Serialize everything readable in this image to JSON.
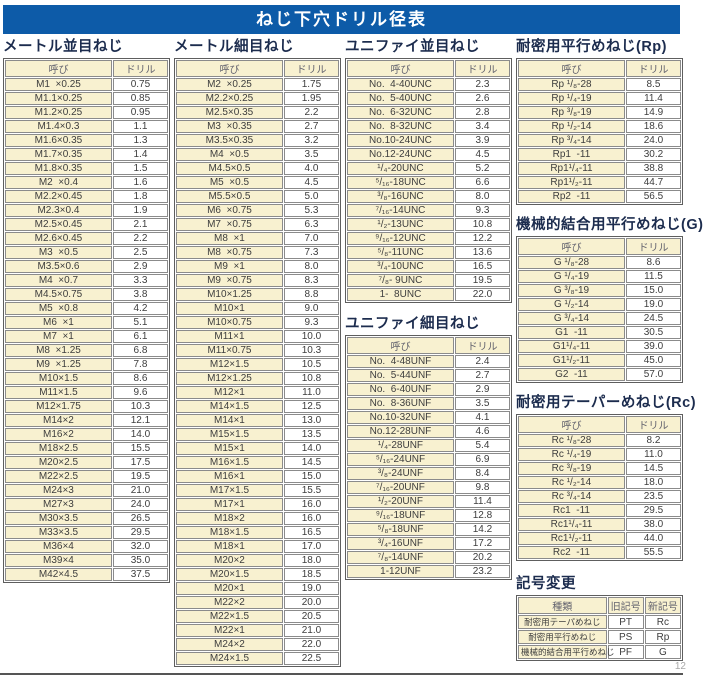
{
  "title": "ねじ下穴ドリル径表",
  "col_headers": {
    "name": "呼び",
    "drill": "ドリル"
  },
  "page_number": "12",
  "colors": {
    "title_bar_bg": "#0d5ba8",
    "title_text": "#ffffff",
    "section_title_text": "#1c2c4e",
    "cell_cream_bg": "#f8f1d0",
    "cell_white_bg": "#ffffff",
    "grid_line": "#8b8b8b",
    "outer_border": "#5e5e5e"
  },
  "tables": [
    {
      "title": "メートル並目ねじ",
      "rows": [
        [
          "M1  ×0.25",
          "0.75"
        ],
        [
          "M1.1×0.25",
          "0.85"
        ],
        [
          "M1.2×0.25",
          "0.95"
        ],
        [
          "M1.4×0.3",
          "1.1"
        ],
        [
          "M1.6×0.35",
          "1.3"
        ],
        [
          "M1.7×0.35",
          "1.4"
        ],
        [
          "M1.8×0.35",
          "1.5"
        ],
        [
          "M2  ×0.4",
          "1.6"
        ],
        [
          "M2.2×0.45",
          "1.8"
        ],
        [
          "M2.3×0.4",
          "1.9"
        ],
        [
          "M2.5×0.45",
          "2.1"
        ],
        [
          "M2.6×0.45",
          "2.2"
        ],
        [
          "M3  ×0.5",
          "2.5"
        ],
        [
          "M3.5×0.6",
          "2.9"
        ],
        [
          "M4  ×0.7",
          "3.3"
        ],
        [
          "M4.5×0.75",
          "3.8"
        ],
        [
          "M5  ×0.8",
          "4.2"
        ],
        [
          "M6  ×1",
          "5.1"
        ],
        [
          "M7  ×1",
          "6.1"
        ],
        [
          "M8  ×1.25",
          "6.8"
        ],
        [
          "M9  ×1.25",
          "7.8"
        ],
        [
          "M10×1.5",
          "8.6"
        ],
        [
          "M11×1.5",
          "9.6"
        ],
        [
          "M12×1.75",
          "10.3"
        ],
        [
          "M14×2",
          "12.1"
        ],
        [
          "M16×2",
          "14.0"
        ],
        [
          "M18×2.5",
          "15.5"
        ],
        [
          "M20×2.5",
          "17.5"
        ],
        [
          "M22×2.5",
          "19.5"
        ],
        [
          "M24×3",
          "21.0"
        ],
        [
          "M27×3",
          "24.0"
        ],
        [
          "M30×3.5",
          "26.5"
        ],
        [
          "M33×3.5",
          "29.5"
        ],
        [
          "M36×4",
          "32.0"
        ],
        [
          "M39×4",
          "35.0"
        ],
        [
          "M42×4.5",
          "37.5"
        ]
      ]
    },
    {
      "title": "メートル細目ねじ",
      "rows": [
        [
          "M2  ×0.25",
          "1.75"
        ],
        [
          "M2.2×0.25",
          "1.95"
        ],
        [
          "M2.5×0.35",
          "2.2"
        ],
        [
          "M3  ×0.35",
          "2.7"
        ],
        [
          "M3.5×0.35",
          "3.2"
        ],
        [
          "M4  ×0.5",
          "3.5"
        ],
        [
          "M4.5×0.5",
          "4.0"
        ],
        [
          "M5  ×0.5",
          "4.5"
        ],
        [
          "M5.5×0.5",
          "5.0"
        ],
        [
          "M6  ×0.75",
          "5.3"
        ],
        [
          "M7  ×0.75",
          "6.3"
        ],
        [
          "M8  ×1",
          "7.0"
        ],
        [
          "M8  ×0.75",
          "7.3"
        ],
        [
          "M9  ×1",
          "8.0"
        ],
        [
          "M9  ×0.75",
          "8.3"
        ],
        [
          "M10×1.25",
          "8.8"
        ],
        [
          "M10×1",
          "9.0"
        ],
        [
          "M10×0.75",
          "9.3"
        ],
        [
          "M11×1",
          "10.0"
        ],
        [
          "M11×0.75",
          "10.3"
        ],
        [
          "M12×1.5",
          "10.5"
        ],
        [
          "M12×1.25",
          "10.8"
        ],
        [
          "M12×1",
          "11.0"
        ],
        [
          "M14×1.5",
          "12.5"
        ],
        [
          "M14×1",
          "13.0"
        ],
        [
          "M15×1.5",
          "13.5"
        ],
        [
          "M15×1",
          "14.0"
        ],
        [
          "M16×1.5",
          "14.5"
        ],
        [
          "M16×1",
          "15.0"
        ],
        [
          "M17×1.5",
          "15.5"
        ],
        [
          "M17×1",
          "16.0"
        ],
        [
          "M18×2",
          "16.0"
        ],
        [
          "M18×1.5",
          "16.5"
        ],
        [
          "M18×1",
          "17.0"
        ],
        [
          "M20×2",
          "18.0"
        ],
        [
          "M20×1.5",
          "18.5"
        ],
        [
          "M20×1",
          "19.0"
        ],
        [
          "M22×2",
          "20.0"
        ],
        [
          "M22×1.5",
          "20.5"
        ],
        [
          "M22×1",
          "21.0"
        ],
        [
          "M24×2",
          "22.0"
        ],
        [
          "M24×1.5",
          "22.5"
        ]
      ]
    },
    {
      "title": "ユニファイ並目ねじ",
      "rows": [
        [
          "No.  4-40UNC",
          "2.3"
        ],
        [
          "No.  5-40UNC",
          "2.6"
        ],
        [
          "No.  6-32UNC",
          "2.8"
        ],
        [
          "No.  8-32UNC",
          "3.4"
        ],
        [
          "No.10-24UNC",
          "3.9"
        ],
        [
          "No.12-24UNC",
          "4.5"
        ],
        [
          "¹/₄-20UNC",
          "5.2"
        ],
        [
          "⁵/₁₆-18UNC",
          "6.6"
        ],
        [
          "³/₈-16UNC",
          "8.0"
        ],
        [
          "⁷/₁₆-14UNC",
          "9.3"
        ],
        [
          "¹/₂-13UNC",
          "10.8"
        ],
        [
          "⁹/₁₆-12UNC",
          "12.2"
        ],
        [
          "⁵/₈-11UNC",
          "13.6"
        ],
        [
          "³/₄-10UNC",
          "16.5"
        ],
        [
          "⁷/₈- 9UNC",
          "19.5"
        ],
        [
          "1-  8UNC",
          "22.0"
        ]
      ]
    },
    {
      "title": "ユニファイ細目ねじ",
      "rows": [
        [
          "No.  4-48UNF",
          "2.4"
        ],
        [
          "No.  5-44UNF",
          "2.7"
        ],
        [
          "No.  6-40UNF",
          "2.9"
        ],
        [
          "No.  8-36UNF",
          "3.5"
        ],
        [
          "No.10-32UNF",
          "4.1"
        ],
        [
          "No.12-28UNF",
          "4.6"
        ],
        [
          "¹/₄-28UNF",
          "5.4"
        ],
        [
          "⁵/₁₆-24UNF",
          "6.9"
        ],
        [
          "³/₈-24UNF",
          "8.4"
        ],
        [
          "⁷/₁₆-20UNF",
          "9.8"
        ],
        [
          "¹/₂-20UNF",
          "11.4"
        ],
        [
          "⁹/₁₆-18UNF",
          "12.8"
        ],
        [
          "⁵/₈-18UNF",
          "14.2"
        ],
        [
          "³/₄-16UNF",
          "17.2"
        ],
        [
          "⁷/₈-14UNF",
          "20.2"
        ],
        [
          "1-12UNF",
          "23.2"
        ]
      ]
    },
    {
      "title": "耐密用平行めねじ(Rp)",
      "rows": [
        [
          "Rp ¹/₈-28",
          "8.5"
        ],
        [
          "Rp ¹/₄-19",
          "11.4"
        ],
        [
          "Rp ³/₈-19",
          "14.9"
        ],
        [
          "Rp ¹/₂-14",
          "18.6"
        ],
        [
          "Rp ³/₄-14",
          "24.0"
        ],
        [
          "Rp1  -11",
          "30.2"
        ],
        [
          "Rp1¹/₄-11",
          "38.8"
        ],
        [
          "Rp1¹/₂-11",
          "44.7"
        ],
        [
          "Rp2  -11",
          "56.5"
        ]
      ]
    },
    {
      "title": "機械的結合用平行めねじ(G)",
      "rows": [
        [
          "G ¹/₈-28",
          "8.6"
        ],
        [
          "G ¹/₄-19",
          "11.5"
        ],
        [
          "G ³/₈-19",
          "15.0"
        ],
        [
          "G ¹/₂-14",
          "19.0"
        ],
        [
          "G ³/₄-14",
          "24.5"
        ],
        [
          "G1  -11",
          "30.5"
        ],
        [
          "G1¹/₄-11",
          "39.0"
        ],
        [
          "G1¹/₂-11",
          "45.0"
        ],
        [
          "G2  -11",
          "57.0"
        ]
      ]
    },
    {
      "title": "耐密用テーパーめねじ(Rc)",
      "rows": [
        [
          "Rc ¹/₈-28",
          "8.2"
        ],
        [
          "Rc ¹/₄-19",
          "11.0"
        ],
        [
          "Rc ³/₈-19",
          "14.5"
        ],
        [
          "Rc ¹/₂-14",
          "18.0"
        ],
        [
          "Rc ³/₄-14",
          "23.5"
        ],
        [
          "Rc1  -11",
          "29.5"
        ],
        [
          "Rc1¹/₄-11",
          "38.0"
        ],
        [
          "Rc1¹/₂-11",
          "44.0"
        ],
        [
          "Rc2  -11",
          "55.5"
        ]
      ]
    }
  ],
  "symbol_change": {
    "title": "記号変更",
    "headers": [
      "種類",
      "旧記号",
      "新記号"
    ],
    "rows": [
      [
        "耐密用テーパめねじ",
        "PT",
        "Rc"
      ],
      [
        "耐密用平行めねじ",
        "PS",
        "Rp"
      ],
      [
        "機械的結合用平行めねじ",
        "PF",
        "G"
      ]
    ]
  }
}
